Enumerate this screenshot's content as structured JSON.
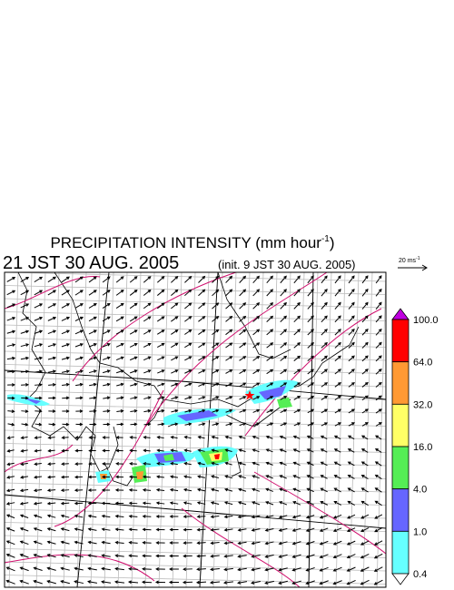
{
  "title": {
    "main": "PRECIPITATION INTENSITY (mm hour",
    "exponent": "-1",
    "close": ")"
  },
  "subtitle": {
    "time": "21 JST 30 AUG. 2005",
    "init": "(init. 9 JST 30 AUG. 2005)"
  },
  "vector_legend": {
    "label": "20 ms",
    "exponent": "-1"
  },
  "colorbar": {
    "labels": [
      "100.0",
      "64.0",
      "32.0",
      "16.0",
      "4.0",
      "1.0",
      "0.4"
    ],
    "colors": [
      "#c000e0",
      "#ff0000",
      "#ff9933",
      "#ffff66",
      "#55ee55",
      "#6666ff",
      "#66ffff",
      "#ffffff"
    ]
  }
}
